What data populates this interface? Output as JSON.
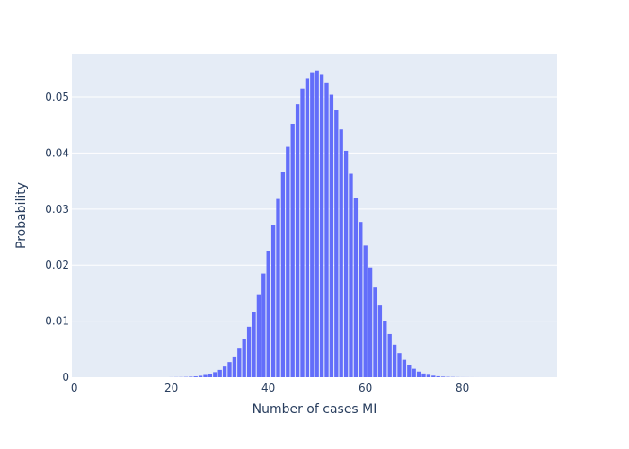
{
  "chart_data": {
    "type": "bar",
    "xlabel": "Number of cases MI",
    "ylabel": "Probability",
    "xlim": [
      -0.5,
      99.5
    ],
    "ylim": [
      0,
      0.0577
    ],
    "x_ticks": [
      0,
      20,
      40,
      60,
      80
    ],
    "y_ticks": [
      0,
      0.01,
      0.02,
      0.03,
      0.04,
      0.05
    ],
    "y_tick_labels": [
      "0",
      "0.01",
      "0.02",
      "0.03",
      "0.04",
      "0.05"
    ],
    "grid": true,
    "legend": "none",
    "colors": {
      "bar": "#636efa",
      "plot_bg": "#e5ecf6",
      "grid": "#ffffff",
      "text": "#2a3f5f"
    },
    "x": [
      20,
      21,
      22,
      23,
      24,
      25,
      26,
      27,
      28,
      29,
      30,
      31,
      32,
      33,
      34,
      35,
      36,
      37,
      38,
      39,
      40,
      41,
      42,
      43,
      44,
      45,
      46,
      47,
      48,
      49,
      50,
      51,
      52,
      53,
      54,
      55,
      56,
      57,
      58,
      59,
      60,
      61,
      62,
      63,
      64,
      65,
      66,
      67,
      68,
      69,
      70,
      71,
      72,
      73,
      74,
      75,
      76,
      77,
      78,
      79,
      80,
      81,
      82,
      83,
      84,
      85,
      86,
      87,
      88
    ],
    "values": [
      1e-05,
      2e-05,
      3e-05,
      5e-05,
      9e-05,
      0.00015,
      0.00025,
      0.0004,
      0.0006,
      0.0009,
      0.0013,
      0.0019,
      0.0027,
      0.0037,
      0.0051,
      0.0068,
      0.009,
      0.0117,
      0.0148,
      0.0185,
      0.0226,
      0.0271,
      0.0318,
      0.0366,
      0.0411,
      0.0452,
      0.0487,
      0.0515,
      0.0533,
      0.0544,
      0.0547,
      0.0541,
      0.0526,
      0.0504,
      0.0476,
      0.0442,
      0.0404,
      0.0363,
      0.032,
      0.0277,
      0.0235,
      0.0196,
      0.016,
      0.0128,
      0.01,
      0.0077,
      0.0058,
      0.0043,
      0.0031,
      0.0022,
      0.0015,
      0.001,
      0.00066,
      0.00043,
      0.00027,
      0.00017,
      0.0001,
      6e-05,
      4e-05,
      2e-05,
      1e-05,
      7e-06,
      4e-06,
      2e-06,
      1e-06,
      6e-07,
      3e-07,
      2e-07,
      1e-07
    ]
  }
}
